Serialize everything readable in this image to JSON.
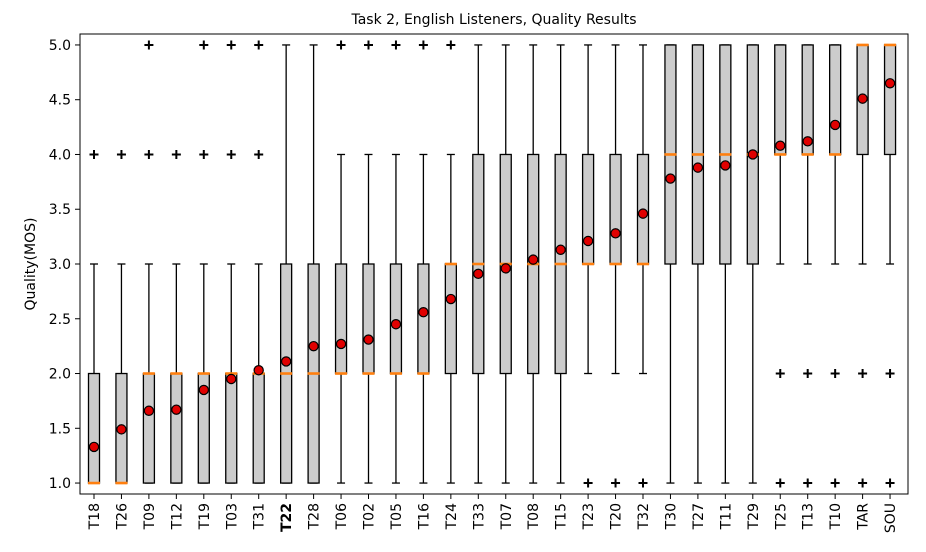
{
  "chart_data": {
    "type": "boxplot",
    "title": "Task 2, English Listeners, Quality Results",
    "ylabel": "Quality(MOS)",
    "xlabel": "",
    "ylim": [
      0.9,
      5.1
    ],
    "yticks": [
      "1.0",
      "1.5",
      "2.0",
      "2.5",
      "3.0",
      "3.5",
      "4.0",
      "4.5",
      "5.0"
    ],
    "grid": false,
    "colors": {
      "box_fill": "#cccccc",
      "box_edge": "#000000",
      "median": "#ff7f0e",
      "mean_marker": "#e00000",
      "highlight_label": "#ff0000"
    },
    "highlight": [
      "T22"
    ],
    "categories": [
      "T18",
      "T26",
      "T09",
      "T12",
      "T19",
      "T03",
      "T31",
      "T22",
      "T28",
      "T06",
      "T02",
      "T05",
      "T16",
      "T24",
      "T33",
      "T07",
      "T08",
      "T15",
      "T23",
      "T20",
      "T32",
      "T30",
      "T27",
      "T11",
      "T29",
      "T25",
      "T13",
      "T10",
      "TAR",
      "SOU"
    ],
    "boxes": [
      {
        "label": "T18",
        "q1": 1,
        "median": 1,
        "q3": 2,
        "whisker_low": 1,
        "whisker_high": 3,
        "mean": 1.33,
        "outliers": [
          4
        ]
      },
      {
        "label": "T26",
        "q1": 1,
        "median": 1,
        "q3": 2,
        "whisker_low": 1,
        "whisker_high": 3,
        "mean": 1.49,
        "outliers": [
          4
        ]
      },
      {
        "label": "T09",
        "q1": 1,
        "median": 2,
        "q3": 2,
        "whisker_low": 1,
        "whisker_high": 3,
        "mean": 1.66,
        "outliers": [
          4,
          5
        ]
      },
      {
        "label": "T12",
        "q1": 1,
        "median": 2,
        "q3": 2,
        "whisker_low": 1,
        "whisker_high": 3,
        "mean": 1.67,
        "outliers": [
          4
        ]
      },
      {
        "label": "T19",
        "q1": 1,
        "median": 2,
        "q3": 2,
        "whisker_low": 1,
        "whisker_high": 3,
        "mean": 1.85,
        "outliers": [
          4,
          5
        ]
      },
      {
        "label": "T03",
        "q1": 1,
        "median": 2,
        "q3": 2,
        "whisker_low": 1,
        "whisker_high": 3,
        "mean": 1.95,
        "outliers": [
          4,
          5
        ]
      },
      {
        "label": "T31",
        "q1": 1,
        "median": 2,
        "q3": 2,
        "whisker_low": 1,
        "whisker_high": 3,
        "mean": 2.03,
        "outliers": [
          4,
          5
        ]
      },
      {
        "label": "T22",
        "q1": 1,
        "median": 2,
        "q3": 3,
        "whisker_low": 1,
        "whisker_high": 5,
        "mean": 2.11,
        "outliers": []
      },
      {
        "label": "T28",
        "q1": 1,
        "median": 2,
        "q3": 3,
        "whisker_low": 1,
        "whisker_high": 5,
        "mean": 2.25,
        "outliers": []
      },
      {
        "label": "T06",
        "q1": 2,
        "median": 2,
        "q3": 3,
        "whisker_low": 1,
        "whisker_high": 4,
        "mean": 2.27,
        "outliers": [
          5
        ]
      },
      {
        "label": "T02",
        "q1": 2,
        "median": 2,
        "q3": 3,
        "whisker_low": 1,
        "whisker_high": 4,
        "mean": 2.31,
        "outliers": [
          5
        ]
      },
      {
        "label": "T05",
        "q1": 2,
        "median": 2,
        "q3": 3,
        "whisker_low": 1,
        "whisker_high": 4,
        "mean": 2.45,
        "outliers": [
          5
        ]
      },
      {
        "label": "T16",
        "q1": 2,
        "median": 2,
        "q3": 3,
        "whisker_low": 1,
        "whisker_high": 4,
        "mean": 2.56,
        "outliers": [
          5
        ]
      },
      {
        "label": "T24",
        "q1": 2,
        "median": 3,
        "q3": 3,
        "whisker_low": 1,
        "whisker_high": 4,
        "mean": 2.68,
        "outliers": [
          5
        ]
      },
      {
        "label": "T33",
        "q1": 2,
        "median": 3,
        "q3": 4,
        "whisker_low": 1,
        "whisker_high": 5,
        "mean": 2.91,
        "outliers": []
      },
      {
        "label": "T07",
        "q1": 2,
        "median": 3,
        "q3": 4,
        "whisker_low": 1,
        "whisker_high": 5,
        "mean": 2.96,
        "outliers": []
      },
      {
        "label": "T08",
        "q1": 2,
        "median": 3,
        "q3": 4,
        "whisker_low": 1,
        "whisker_high": 5,
        "mean": 3.04,
        "outliers": []
      },
      {
        "label": "T15",
        "q1": 2,
        "median": 3,
        "q3": 4,
        "whisker_low": 1,
        "whisker_high": 5,
        "mean": 3.13,
        "outliers": []
      },
      {
        "label": "T23",
        "q1": 3,
        "median": 3,
        "q3": 4,
        "whisker_low": 2,
        "whisker_high": 5,
        "mean": 3.21,
        "outliers": [
          1
        ]
      },
      {
        "label": "T20",
        "q1": 3,
        "median": 3,
        "q3": 4,
        "whisker_low": 2,
        "whisker_high": 5,
        "mean": 3.28,
        "outliers": [
          1
        ]
      },
      {
        "label": "T32",
        "q1": 3,
        "median": 3,
        "q3": 4,
        "whisker_low": 2,
        "whisker_high": 5,
        "mean": 3.46,
        "outliers": [
          1
        ]
      },
      {
        "label": "T30",
        "q1": 3,
        "median": 4,
        "q3": 5,
        "whisker_low": 1,
        "whisker_high": 5,
        "mean": 3.78,
        "outliers": []
      },
      {
        "label": "T27",
        "q1": 3,
        "median": 4,
        "q3": 5,
        "whisker_low": 1,
        "whisker_high": 5,
        "mean": 3.88,
        "outliers": []
      },
      {
        "label": "T11",
        "q1": 3,
        "median": 4,
        "q3": 5,
        "whisker_low": 1,
        "whisker_high": 5,
        "mean": 3.9,
        "outliers": []
      },
      {
        "label": "T29",
        "q1": 3,
        "median": 4,
        "q3": 5,
        "whisker_low": 1,
        "whisker_high": 5,
        "mean": 4.0,
        "outliers": []
      },
      {
        "label": "T25",
        "q1": 4,
        "median": 4,
        "q3": 5,
        "whisker_low": 3,
        "whisker_high": 5,
        "mean": 4.08,
        "outliers": [
          1,
          2
        ]
      },
      {
        "label": "T13",
        "q1": 4,
        "median": 4,
        "q3": 5,
        "whisker_low": 3,
        "whisker_high": 5,
        "mean": 4.12,
        "outliers": [
          1,
          2
        ]
      },
      {
        "label": "T10",
        "q1": 4,
        "median": 4,
        "q3": 5,
        "whisker_low": 3,
        "whisker_high": 5,
        "mean": 4.27,
        "outliers": [
          1,
          2
        ]
      },
      {
        "label": "TAR",
        "q1": 4,
        "median": 5,
        "q3": 5,
        "whisker_low": 3,
        "whisker_high": 5,
        "mean": 4.51,
        "outliers": [
          1,
          2
        ]
      },
      {
        "label": "SOU",
        "q1": 4,
        "median": 5,
        "q3": 5,
        "whisker_low": 3,
        "whisker_high": 5,
        "mean": 4.65,
        "outliers": [
          1,
          2
        ]
      }
    ]
  }
}
